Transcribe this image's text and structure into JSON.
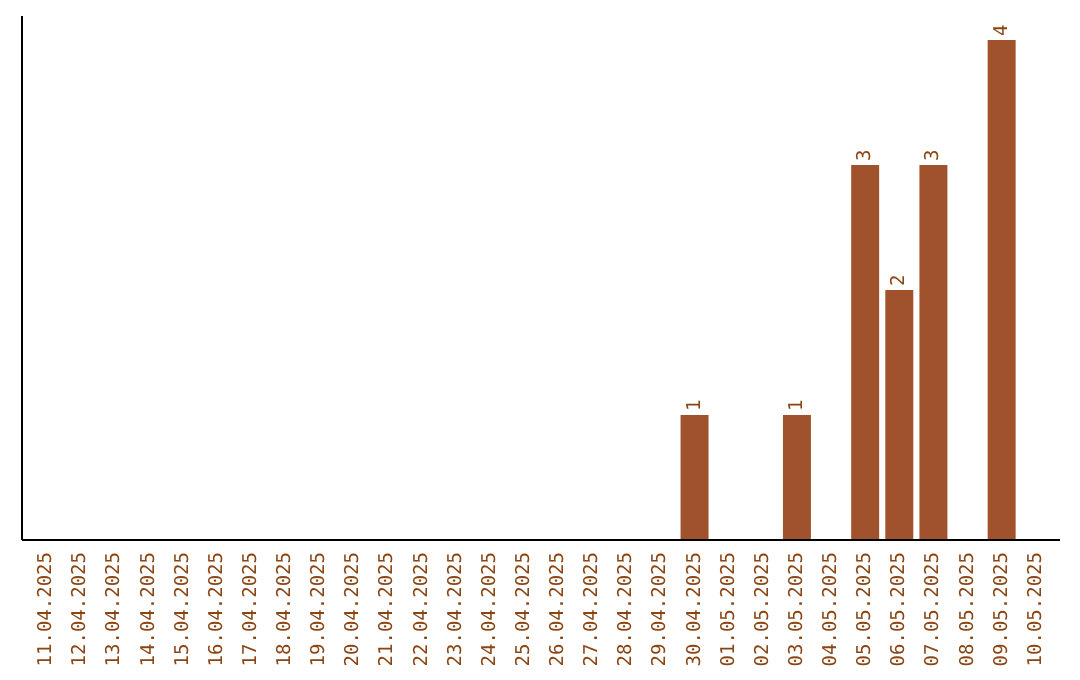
{
  "chart_data": {
    "type": "bar",
    "categories": [
      "11.04.2025",
      "12.04.2025",
      "13.04.2025",
      "14.04.2025",
      "15.04.2025",
      "16.04.2025",
      "17.04.2025",
      "18.04.2025",
      "19.04.2025",
      "20.04.2025",
      "21.04.2025",
      "22.04.2025",
      "23.04.2025",
      "24.04.2025",
      "25.04.2025",
      "26.04.2025",
      "27.04.2025",
      "28.04.2025",
      "29.04.2025",
      "30.04.2025",
      "01.05.2025",
      "02.05.2025",
      "03.05.2025",
      "04.05.2025",
      "05.05.2025",
      "06.05.2025",
      "07.05.2025",
      "08.05.2025",
      "09.05.2025",
      "10.05.2025"
    ],
    "values": [
      null,
      null,
      null,
      null,
      null,
      null,
      null,
      null,
      null,
      null,
      null,
      null,
      null,
      null,
      null,
      null,
      null,
      null,
      null,
      1,
      null,
      null,
      1,
      null,
      3,
      2,
      3,
      null,
      4,
      null
    ],
    "color": "#a0522d",
    "data_labels": true,
    "tick_labels": "x"
  }
}
